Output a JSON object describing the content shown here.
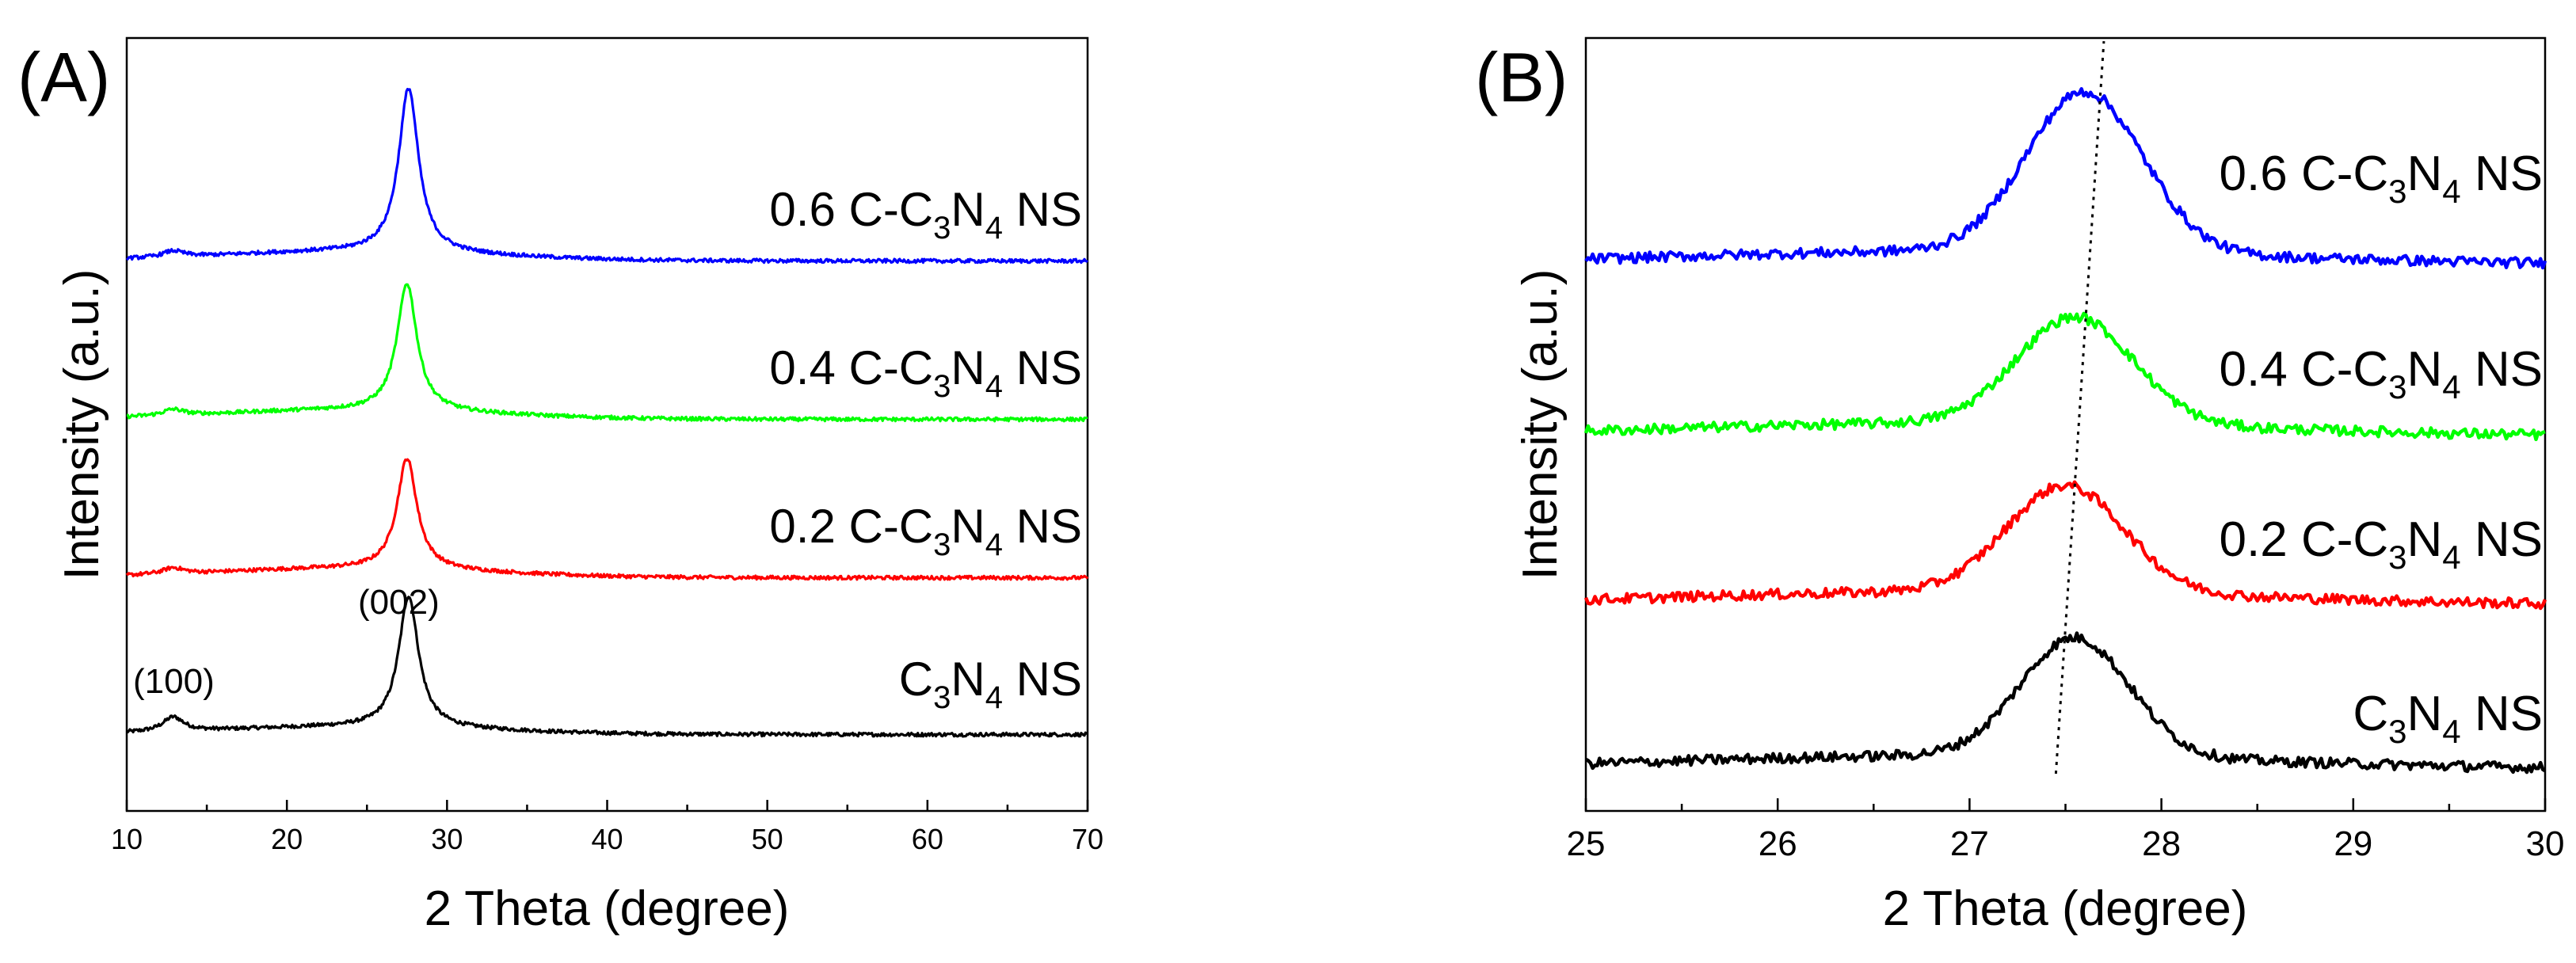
{
  "chart_data": [
    {
      "panel": "(A)",
      "type": "line",
      "xlabel": "2 Theta (degree)",
      "ylabel": "Intensity (a.u.)",
      "xlim": [
        10,
        70
      ],
      "xticks": [
        "10",
        "20",
        "30",
        "40",
        "50",
        "60",
        "70"
      ],
      "y_ticks_shown": false,
      "annotations": [
        {
          "text": "(100)",
          "x": 13.0
        },
        {
          "text": "(002)",
          "x": 27.5
        }
      ],
      "series": [
        {
          "name": "C3N4 NS",
          "label_prefix": "",
          "label_sub1": "3",
          "label_mid": "N",
          "label_sub2": "4",
          "label_suffix": " NS",
          "label_main": "C",
          "color": "#000000",
          "offset": 0,
          "baseline": 0.2,
          "peaks": [
            {
              "x": 12.9,
              "height": 0.35,
              "width": 0.8
            },
            {
              "x": 27.6,
              "height": 3.2,
              "width": 0.75
            }
          ],
          "broad_hump": {
            "center": 24,
            "height": 0.18,
            "width": 12
          }
        },
        {
          "name": "0.2 C-C3N4 NS",
          "label_prefix": "0.2 ",
          "label_main": "C-C",
          "label_sub1": "3",
          "label_mid": "N",
          "label_sub2": "4",
          "label_suffix": " NS",
          "color": "#ff0000",
          "offset": 1,
          "baseline": 0.2,
          "peaks": [
            {
              "x": 12.9,
              "height": 0.15,
              "width": 0.8
            },
            {
              "x": 27.5,
              "height": 2.7,
              "width": 0.75
            }
          ],
          "broad_hump": {
            "center": 24,
            "height": 0.22,
            "width": 12
          }
        },
        {
          "name": "0.4 C-C3N4 NS",
          "label_prefix": "0.4 ",
          "label_main": "C-C",
          "label_sub1": "3",
          "label_mid": "N",
          "label_sub2": "4",
          "label_suffix": " NS",
          "color": "#00ff00",
          "offset": 2,
          "baseline": 0.2,
          "peaks": [
            {
              "x": 12.9,
              "height": 0.15,
              "width": 0.8
            },
            {
              "x": 27.5,
              "height": 3.1,
              "width": 0.75
            }
          ],
          "broad_hump": {
            "center": 24,
            "height": 0.22,
            "width": 12
          }
        },
        {
          "name": "0.6 C-C3N4 NS",
          "label_prefix": "0.6 ",
          "label_main": "C-C",
          "label_sub1": "3",
          "label_mid": "N",
          "label_sub2": "4",
          "label_suffix": " NS",
          "color": "#0000ff",
          "offset": 3,
          "baseline": 0.2,
          "peaks": [
            {
              "x": 12.9,
              "height": 0.15,
              "width": 0.8
            },
            {
              "x": 27.6,
              "height": 4.0,
              "width": 0.75
            }
          ],
          "broad_hump": {
            "center": 24,
            "height": 0.22,
            "width": 12
          }
        }
      ]
    },
    {
      "panel": "(B)",
      "type": "line",
      "xlabel": "2 Theta (degree)",
      "ylabel": "Intensity (a.u.)",
      "xlim": [
        25,
        30
      ],
      "xticks": [
        "25",
        "26",
        "27",
        "28",
        "29",
        "30"
      ],
      "y_ticks_shown": false,
      "guide_line": {
        "style": "dotted",
        "from": {
          "x": 27.45,
          "series": "bottom"
        },
        "to": {
          "x": 27.7,
          "series": "top"
        }
      },
      "series": [
        {
          "name": "C3N4 NS",
          "label_prefix": "",
          "label_main": "C",
          "label_sub1": "3",
          "label_mid": "N",
          "label_sub2": "4",
          "label_suffix": " NS",
          "color": "#000000",
          "offset": 0,
          "peak_center": 27.55,
          "peak_height": 1.0,
          "peak_width": 0.42
        },
        {
          "name": "0.2 C-C3N4 NS",
          "label_prefix": "0.2 ",
          "label_main": "C-C",
          "label_sub1": "3",
          "label_mid": "N",
          "label_sub2": "4",
          "label_suffix": " NS",
          "color": "#ff0000",
          "offset": 1,
          "peak_center": 27.5,
          "peak_height": 0.9,
          "peak_width": 0.45
        },
        {
          "name": "0.4 C-C3N4 NS",
          "label_prefix": "0.4 ",
          "label_main": "C-C",
          "label_sub1": "3",
          "label_mid": "N",
          "label_sub2": "4",
          "label_suffix": " NS",
          "color": "#00ff00",
          "offset": 2,
          "peak_center": 27.55,
          "peak_height": 0.9,
          "peak_width": 0.45
        },
        {
          "name": "0.6 C-C3N4 NS",
          "label_prefix": "0.6 ",
          "label_main": "C-C",
          "label_sub1": "3",
          "label_mid": "N",
          "label_sub2": "4",
          "label_suffix": " NS",
          "color": "#0000ff",
          "offset": 3,
          "peak_center": 27.6,
          "peak_height": 1.35,
          "peak_width": 0.45
        }
      ]
    }
  ]
}
